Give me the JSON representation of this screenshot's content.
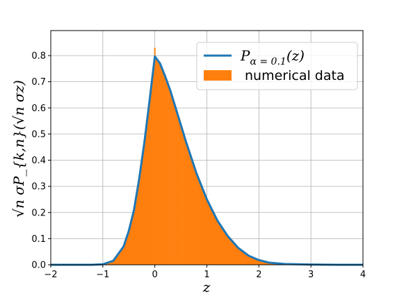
{
  "chart_data": {
    "type": "area",
    "xlabel": "z",
    "ylabel": "√n σP_{k,n}(√n σz)",
    "xlim": [
      -2,
      4
    ],
    "ylim": [
      0,
      0.85
    ],
    "xticks": [
      "−2",
      "−1",
      "0",
      "1",
      "2",
      "3",
      "4"
    ],
    "yticks": [
      "0.0",
      "0.1",
      "0.2",
      "0.3",
      "0.4",
      "0.5",
      "0.6",
      "0.7",
      "0.8"
    ],
    "grid": true,
    "legend_position": "upper right",
    "legend": {
      "line_label_main": "P",
      "line_label_sub": "α = 0.1",
      "line_label_arg": "(z)",
      "bar_label": "numerical data"
    },
    "series": [
      {
        "name": "P_{α = 0.1}(z)",
        "kind": "line",
        "color": "#1f77b4",
        "x": [
          -2.0,
          -1.5,
          -1.2,
          -1.0,
          -0.8,
          -0.6,
          -0.5,
          -0.4,
          -0.3,
          -0.2,
          -0.1,
          0.0,
          0.1,
          0.2,
          0.3,
          0.4,
          0.5,
          0.6,
          0.7,
          0.8,
          0.9,
          1.0,
          1.2,
          1.4,
          1.6,
          1.8,
          2.0,
          2.2,
          2.5,
          3.0,
          3.5,
          4.0
        ],
        "y": [
          0.0,
          0.0,
          0.0,
          0.002,
          0.015,
          0.07,
          0.13,
          0.21,
          0.33,
          0.47,
          0.63,
          0.797,
          0.77,
          0.72,
          0.665,
          0.6,
          0.535,
          0.47,
          0.41,
          0.35,
          0.3,
          0.25,
          0.17,
          0.11,
          0.065,
          0.035,
          0.018,
          0.008,
          0.003,
          0.001,
          0.0,
          0.0
        ]
      },
      {
        "name": "numerical data",
        "kind": "histogram",
        "color": "#ff7f0e",
        "spike": {
          "x": 0.0,
          "y": 0.83
        }
      }
    ]
  }
}
